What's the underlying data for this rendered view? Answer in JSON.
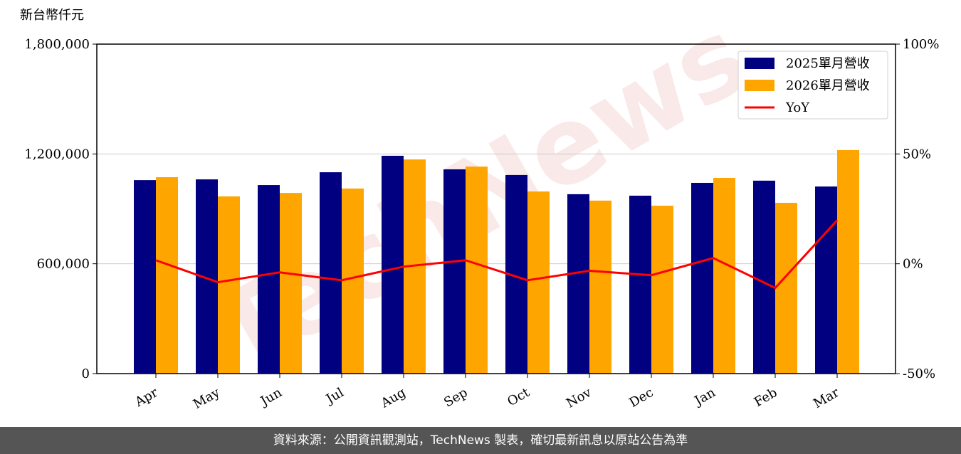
{
  "chart_data": {
    "type": "bar",
    "unit_label": "新台幣仟元",
    "watermark": "TechNews",
    "categories": [
      "Apr",
      "May",
      "Jun",
      "Jul",
      "Aug",
      "Sep",
      "Oct",
      "Nov",
      "Dec",
      "Jan",
      "Feb",
      "Mar"
    ],
    "series": [
      {
        "name": "2025單月營收",
        "color": "#000080",
        "values": [
          1057000,
          1061000,
          1030000,
          1100000,
          1190000,
          1116000,
          1085000,
          980000,
          972000,
          1042000,
          1054000,
          1022000
        ]
      },
      {
        "name": "2026單月營收",
        "color": "#ffa500",
        "values": [
          1073000,
          968000,
          987000,
          1011000,
          1170000,
          1131000,
          995000,
          945000,
          917000,
          1069000,
          933000,
          1221000
        ]
      },
      {
        "name": "YoY",
        "color": "#ff0000",
        "type": "line",
        "axis": "y2",
        "values": [
          1.6,
          -8.4,
          -3.9,
          -7.5,
          -1.3,
          1.6,
          -7.5,
          -3.2,
          -5.2,
          2.6,
          -11.0,
          19.8
        ]
      }
    ],
    "ylim": [
      0,
      1800000
    ],
    "yticks": [
      0,
      {
        "value": 600000,
        "label": "600,000"
      },
      {
        "value": 1200000,
        "label": "1,200,000"
      },
      {
        "value": 1800000,
        "label": "1,800,000"
      }
    ],
    "y2lim": [
      -50,
      100
    ],
    "y2ticks": [
      {
        "value": -50,
        "label": "-50%"
      },
      {
        "value": 0,
        "label": "0%"
      },
      {
        "value": 50,
        "label": "50%"
      },
      {
        "value": 100,
        "label": "100%"
      }
    ],
    "grid": true,
    "legend": "upper right",
    "footer": "資料來源：公開資訊觀測站，TechNews 製表，確切最新訊息以原站公告為準"
  }
}
